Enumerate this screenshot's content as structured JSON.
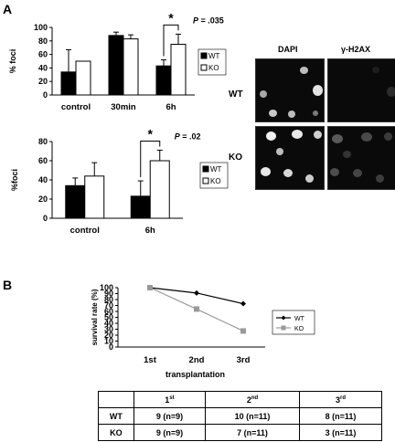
{
  "panels": {
    "a": {
      "letter": "A"
    },
    "b": {
      "letter": "B"
    }
  },
  "chart_data": [
    {
      "type": "bar",
      "categories": [
        "control",
        "30min",
        "6h"
      ],
      "series": [
        {
          "name": "WT",
          "values": [
            34,
            88,
            43
          ],
          "errors": [
            33,
            5,
            9
          ],
          "color": "#000000"
        },
        {
          "name": "KO",
          "values": [
            50,
            83,
            75
          ],
          "errors": [
            0,
            6,
            15
          ],
          "color": "#ffffff"
        }
      ],
      "ylabel": "% foci",
      "ylim": [
        0,
        100
      ],
      "yticks": [
        0,
        20,
        40,
        60,
        80,
        100
      ],
      "significance": {
        "category": "6h",
        "marker": "*",
        "p_text": "P = .035"
      },
      "legend": "right"
    },
    {
      "type": "bar",
      "categories": [
        "control",
        "6h"
      ],
      "series": [
        {
          "name": "WT",
          "values": [
            34,
            23
          ],
          "errors": [
            8,
            16
          ],
          "color": "#000000"
        },
        {
          "name": "KO",
          "values": [
            44,
            60
          ],
          "errors": [
            14,
            11
          ],
          "color": "#ffffff"
        }
      ],
      "ylabel": "%foci",
      "ylim": [
        0,
        80
      ],
      "yticks": [
        0,
        20,
        40,
        60,
        80
      ],
      "significance": {
        "category": "6h",
        "marker": "*",
        "p_text": "P = .02"
      },
      "legend": "right"
    },
    {
      "type": "line",
      "x": [
        "1st",
        "2nd",
        "3rd"
      ],
      "series": [
        {
          "name": "WT",
          "values": [
            100,
            91,
            73
          ],
          "color": "#000000",
          "marker": "diamond"
        },
        {
          "name": "KO",
          "values": [
            100,
            64,
            27
          ],
          "color": "#999999",
          "marker": "square"
        }
      ],
      "xlabel": "transplantation",
      "ylabel": "survival rate (%)",
      "ylim": [
        0,
        100
      ],
      "yticks": [
        0,
        10,
        20,
        30,
        40,
        50,
        60,
        70,
        80,
        90,
        100
      ],
      "legend": "right"
    }
  ],
  "micrographs": {
    "columns": [
      "DAPI",
      "γ-H2AX"
    ],
    "rows": [
      "WT",
      "KO"
    ]
  },
  "table": {
    "header": [
      {
        "num": "1",
        "sup": "st"
      },
      {
        "num": "2",
        "sup": "nd"
      },
      {
        "num": "3",
        "sup": "rd"
      }
    ],
    "rows": [
      {
        "label": "WT",
        "cells": [
          "9 (n=9)",
          "10 (n=11)",
          "8 (n=11)"
        ]
      },
      {
        "label": "KO",
        "cells": [
          "9 (n=9)",
          "7 (n=11)",
          "3 (n=11)"
        ]
      }
    ]
  }
}
